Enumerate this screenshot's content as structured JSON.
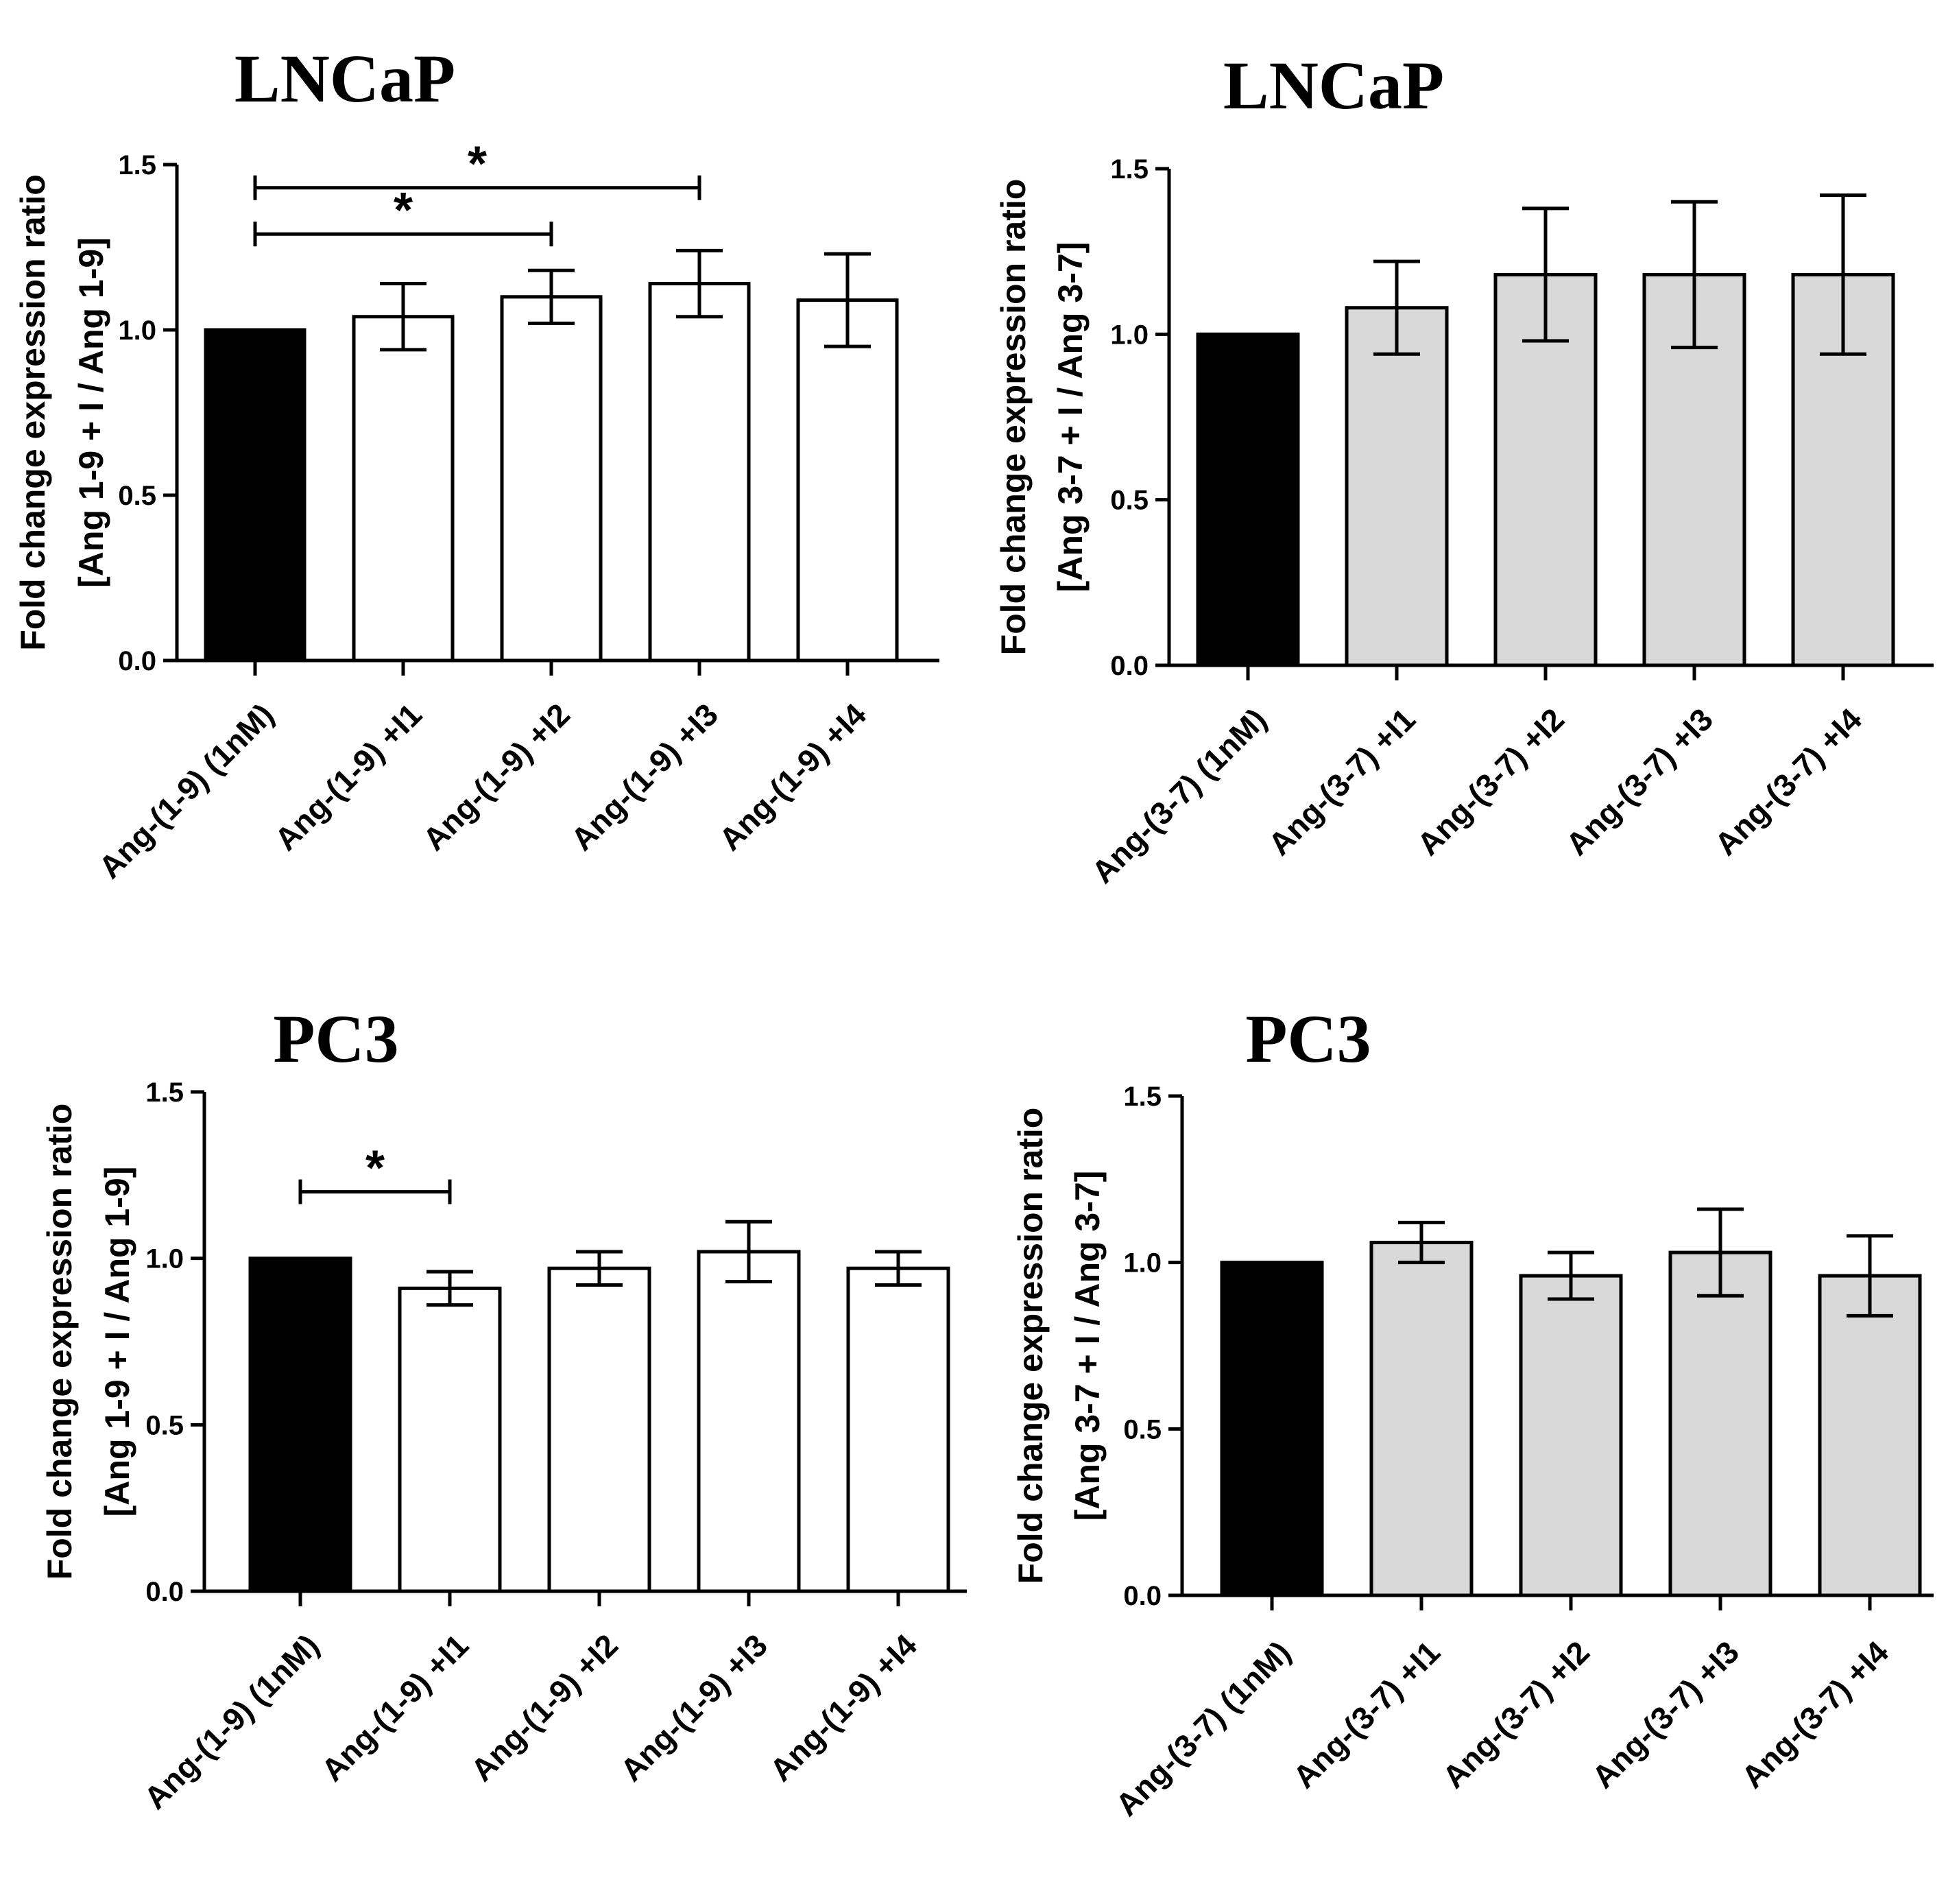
{
  "chart_data": [
    {
      "type": "bar",
      "title": "LNCaP",
      "ylabel_line1": "Fold change expression ratio",
      "ylabel_line2": "[Ang 1-9 + I / Ang 1-9]",
      "xlabel": "",
      "ylim": [
        0,
        1.5
      ],
      "yticks": [
        "0.0",
        "0.5",
        "1.0",
        "1.5"
      ],
      "categories": [
        "Ang-(1-9) (1nM)",
        "Ang-(1-9) +I1",
        "Ang-(1-9) +I2",
        "Ang-(1-9) +I3",
        "Ang-(1-9) +I4"
      ],
      "values": [
        1.0,
        1.04,
        1.1,
        1.14,
        1.09
      ],
      "errors": [
        0,
        0.1,
        0.08,
        0.1,
        0.14
      ],
      "bar_colors": [
        "#000000",
        "#ffffff",
        "#ffffff",
        "#ffffff",
        "#ffffff"
      ],
      "significance": [
        {
          "from": 0,
          "to": 3,
          "y": 1.43,
          "label": "*"
        },
        {
          "from": 0,
          "to": 2,
          "y": 1.29,
          "label": "*"
        }
      ]
    },
    {
      "type": "bar",
      "title": "LNCaP",
      "ylabel_line1": "Fold change expression ratio",
      "ylabel_line2": "[Ang 3-7 + I / Ang 3-7]",
      "xlabel": "",
      "ylim": [
        0,
        1.5
      ],
      "yticks": [
        "0.0",
        "0.5",
        "1.0",
        "1.5"
      ],
      "categories": [
        "Ang-(3-7) (1nM)",
        "Ang-(3-7) +I1",
        "Ang-(3-7) +I2",
        "Ang-(3-7) +I3",
        "Ang-(3-7) +I4"
      ],
      "values": [
        1.0,
        1.08,
        1.18,
        1.18,
        1.18
      ],
      "errors": [
        0,
        0.14,
        0.2,
        0.22,
        0.24
      ],
      "bar_colors": [
        "#000000",
        "#d9d9d9",
        "#d9d9d9",
        "#d9d9d9",
        "#d9d9d9"
      ],
      "significance": []
    },
    {
      "type": "bar",
      "title": "PC3",
      "ylabel_line1": "Fold change expression ratio",
      "ylabel_line2": "[Ang 1-9 + I / Ang 1-9]",
      "xlabel": "",
      "ylim": [
        0,
        1.5
      ],
      "yticks": [
        "0.0",
        "0.5",
        "1.0",
        "1.5"
      ],
      "categories": [
        "Ang-(1-9) (1nM)",
        "Ang-(1-9) +I1",
        "Ang-(1-9) +I2",
        "Ang-(1-9) +I3",
        "Ang-(1-9) +I4"
      ],
      "values": [
        1.0,
        0.91,
        0.97,
        1.02,
        0.97
      ],
      "errors": [
        0,
        0.05,
        0.05,
        0.09,
        0.05
      ],
      "bar_colors": [
        "#000000",
        "#ffffff",
        "#ffffff",
        "#ffffff",
        "#ffffff"
      ],
      "significance": [
        {
          "from": 0,
          "to": 1,
          "y": 1.2,
          "label": "*"
        }
      ]
    },
    {
      "type": "bar",
      "title": "PC3",
      "ylabel_line1": "Fold change expression ratio",
      "ylabel_line2": "[Ang 3-7 + I / Ang 3-7]",
      "xlabel": "",
      "ylim": [
        0,
        1.5
      ],
      "yticks": [
        "0.0",
        "0.5",
        "1.0",
        "1.5"
      ],
      "categories": [
        "Ang-(3-7) (1nM)",
        "Ang-(3-7) +I1",
        "Ang-(3-7) +I2",
        "Ang-(3-7) +I3",
        "Ang-(3-7) +I4"
      ],
      "values": [
        1.0,
        1.06,
        0.96,
        1.03,
        0.96
      ],
      "errors": [
        0,
        0.06,
        0.07,
        0.13,
        0.12
      ],
      "bar_colors": [
        "#000000",
        "#d9d9d9",
        "#d9d9d9",
        "#d9d9d9",
        "#d9d9d9"
      ],
      "significance": []
    }
  ]
}
